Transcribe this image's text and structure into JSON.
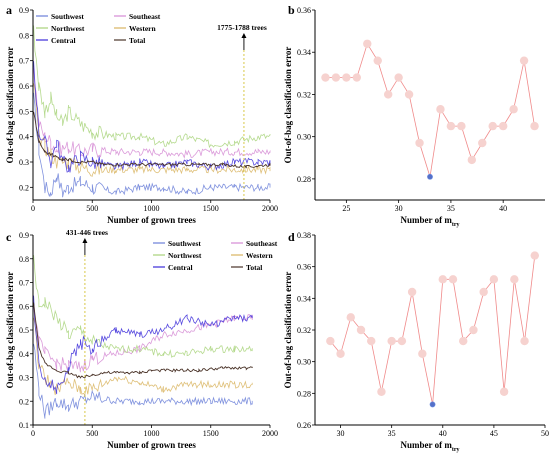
{
  "chart_data": [
    {
      "panel": "a",
      "type": "line",
      "xlabel": "Number of grown trees",
      "ylabel": "Out-of-bag classification error",
      "xlim": [
        0,
        2000
      ],
      "ylim": [
        0.15,
        0.9
      ],
      "xticks": [
        0,
        500,
        1000,
        1500,
        2000
      ],
      "yticks": [
        0.2,
        0.3,
        0.4,
        0.5,
        0.6,
        0.7,
        0.8,
        0.9
      ],
      "annotation": {
        "text": "1775-1788 trees",
        "x": 1780
      },
      "legend": {
        "placement": "top-left",
        "entries": [
          "Southwest",
          "Southeast",
          "Northwest",
          "Western",
          "Central",
          "Total"
        ]
      },
      "series": [
        {
          "name": "Southwest",
          "color": "#6a7fd8",
          "x": [
            5,
            50,
            100,
            150,
            200,
            250,
            300,
            400,
            500,
            700,
            900,
            1100,
            1300,
            1500,
            1700,
            1900,
            2000
          ],
          "values": [
            0.55,
            0.35,
            0.2,
            0.18,
            0.25,
            0.18,
            0.2,
            0.22,
            0.2,
            0.18,
            0.2,
            0.2,
            0.18,
            0.2,
            0.2,
            0.2,
            0.2
          ]
        },
        {
          "name": "Southeast",
          "color": "#d58ad4",
          "x": [
            5,
            50,
            100,
            150,
            200,
            300,
            400,
            500,
            700,
            900,
            1100,
            1300,
            1500,
            1700,
            1900,
            2000
          ],
          "values": [
            0.68,
            0.45,
            0.4,
            0.38,
            0.35,
            0.36,
            0.34,
            0.35,
            0.34,
            0.34,
            0.34,
            0.33,
            0.34,
            0.34,
            0.34,
            0.34
          ]
        },
        {
          "name": "Northwest",
          "color": "#a8d37a",
          "x": [
            5,
            50,
            100,
            150,
            200,
            250,
            300,
            400,
            500,
            700,
            900,
            1100,
            1300,
            1500,
            1700,
            1900,
            2000
          ],
          "values": [
            0.82,
            0.6,
            0.5,
            0.55,
            0.48,
            0.45,
            0.5,
            0.45,
            0.42,
            0.4,
            0.4,
            0.37,
            0.4,
            0.37,
            0.38,
            0.4,
            0.4
          ]
        },
        {
          "name": "Western",
          "color": "#d9b562",
          "x": [
            5,
            50,
            100,
            150,
            200,
            300,
            400,
            500,
            700,
            900,
            1100,
            1300,
            1500,
            1700,
            1900,
            2000
          ],
          "values": [
            0.62,
            0.4,
            0.36,
            0.33,
            0.3,
            0.3,
            0.28,
            0.27,
            0.27,
            0.27,
            0.27,
            0.27,
            0.27,
            0.27,
            0.27,
            0.27
          ]
        },
        {
          "name": "Central",
          "color": "#3b2bd9",
          "x": [
            5,
            50,
            100,
            150,
            200,
            250,
            300,
            400,
            500,
            700,
            900,
            1100,
            1300,
            1500,
            1700,
            1900,
            2000
          ],
          "values": [
            0.7,
            0.42,
            0.38,
            0.3,
            0.38,
            0.3,
            0.28,
            0.32,
            0.3,
            0.28,
            0.3,
            0.28,
            0.3,
            0.28,
            0.3,
            0.3,
            0.3
          ]
        },
        {
          "name": "Total",
          "color": "#4a3328",
          "x": [
            5,
            50,
            100,
            150,
            200,
            250,
            300,
            400,
            500,
            600,
            700,
            800,
            900,
            1000,
            1200,
            1400,
            1600,
            1800,
            2000
          ],
          "values": [
            0.5,
            0.38,
            0.34,
            0.33,
            0.32,
            0.31,
            0.31,
            0.3,
            0.3,
            0.29,
            0.29,
            0.29,
            0.29,
            0.29,
            0.29,
            0.29,
            0.29,
            0.28,
            0.29
          ]
        }
      ]
    },
    {
      "panel": "b",
      "type": "line",
      "xlabel": "Number of m",
      "xlabel_sub": "try",
      "ylabel": "Out-of-bag classification error",
      "xlim": [
        22,
        44
      ],
      "ylim": [
        0.27,
        0.36
      ],
      "xticks": [
        25,
        30,
        35,
        40
      ],
      "yticks": [
        0.28,
        0.3,
        0.32,
        0.34,
        0.36
      ],
      "x": [
        23,
        24,
        25,
        26,
        27,
        28,
        29,
        30,
        31,
        32,
        33,
        34,
        35,
        36,
        37,
        38,
        39,
        40,
        41,
        42,
        43
      ],
      "values": [
        0.328,
        0.328,
        0.328,
        0.328,
        0.344,
        0.336,
        0.32,
        0.328,
        0.32,
        0.297,
        0.281,
        0.313,
        0.305,
        0.305,
        0.289,
        0.297,
        0.305,
        0.305,
        0.313,
        0.336,
        0.305
      ],
      "highlight_index": 10,
      "line_color": "#f08a8a",
      "marker_color": "#f6d2cf",
      "highlight_color": "#5570c8"
    },
    {
      "panel": "c",
      "type": "line",
      "xlabel": "Number of grown trees",
      "ylabel": "Out-of-bag classification error",
      "xlim": [
        0,
        2000
      ],
      "ylim": [
        0.1,
        0.9
      ],
      "xticks": [
        0,
        500,
        1000,
        1500,
        2000
      ],
      "yticks": [
        0.1,
        0.2,
        0.3,
        0.4,
        0.5,
        0.6,
        0.7,
        0.8,
        0.9
      ],
      "annotation": {
        "text": "431-446 trees",
        "x": 438
      },
      "legend": {
        "placement": "top-right",
        "entries": [
          "Southwest",
          "Southeast",
          "Northwest",
          "Western",
          "Central",
          "Total"
        ]
      },
      "series": [
        {
          "name": "Southwest",
          "color": "#6a7fd8",
          "x": [
            5,
            50,
            100,
            200,
            300,
            400,
            500,
            700,
            900,
            1100,
            1300,
            1500,
            1700,
            1850
          ],
          "values": [
            0.45,
            0.25,
            0.15,
            0.2,
            0.18,
            0.2,
            0.22,
            0.2,
            0.2,
            0.2,
            0.2,
            0.2,
            0.2,
            0.2
          ]
        },
        {
          "name": "Southeast",
          "color": "#d58ad4",
          "x": [
            5,
            50,
            100,
            200,
            300,
            400,
            500,
            700,
            900,
            1100,
            1300,
            1500,
            1700,
            1850
          ],
          "values": [
            0.6,
            0.45,
            0.4,
            0.36,
            0.35,
            0.34,
            0.38,
            0.4,
            0.42,
            0.48,
            0.5,
            0.52,
            0.55,
            0.55
          ]
        },
        {
          "name": "Northwest",
          "color": "#a8d37a",
          "x": [
            5,
            50,
            100,
            200,
            300,
            400,
            500,
            700,
            900,
            1100,
            1300,
            1500,
            1700,
            1850
          ],
          "values": [
            0.8,
            0.6,
            0.62,
            0.55,
            0.48,
            0.5,
            0.45,
            0.42,
            0.42,
            0.4,
            0.4,
            0.42,
            0.42,
            0.42
          ]
        },
        {
          "name": "Western",
          "color": "#d9b562",
          "x": [
            5,
            50,
            100,
            200,
            300,
            400,
            500,
            700,
            900,
            1100,
            1300,
            1500,
            1700,
            1850
          ],
          "values": [
            0.55,
            0.35,
            0.3,
            0.25,
            0.28,
            0.25,
            0.25,
            0.3,
            0.28,
            0.25,
            0.27,
            0.27,
            0.27,
            0.27
          ]
        },
        {
          "name": "Central",
          "color": "#3b2bd9",
          "x": [
            5,
            50,
            100,
            200,
            300,
            400,
            500,
            700,
            900,
            1100,
            1300,
            1500,
            1700,
            1850
          ],
          "values": [
            0.62,
            0.35,
            0.3,
            0.25,
            0.35,
            0.45,
            0.42,
            0.5,
            0.48,
            0.5,
            0.55,
            0.52,
            0.55,
            0.55
          ]
        },
        {
          "name": "Total",
          "color": "#4a3328",
          "x": [
            5,
            50,
            100,
            200,
            300,
            400,
            500,
            600,
            700,
            800,
            900,
            1000,
            1200,
            1400,
            1600,
            1800,
            1850
          ],
          "values": [
            0.62,
            0.42,
            0.36,
            0.33,
            0.32,
            0.3,
            0.31,
            0.32,
            0.32,
            0.32,
            0.32,
            0.33,
            0.33,
            0.33,
            0.34,
            0.34,
            0.34
          ]
        }
      ]
    },
    {
      "panel": "d",
      "type": "line",
      "xlabel": "Number of m",
      "xlabel_sub": "try",
      "ylabel": "Out-of-bag classification error",
      "xlim": [
        27.5,
        50
      ],
      "ylim": [
        0.26,
        0.38
      ],
      "xticks": [
        30,
        35,
        40,
        45,
        50
      ],
      "yticks": [
        0.26,
        0.28,
        0.3,
        0.32,
        0.34,
        0.36,
        0.38
      ],
      "x": [
        29,
        30,
        31,
        32,
        33,
        34,
        35,
        36,
        37,
        38,
        39,
        40,
        41,
        42,
        43,
        44,
        45,
        46,
        47,
        48,
        49
      ],
      "values": [
        0.313,
        0.305,
        0.328,
        0.32,
        0.313,
        0.281,
        0.313,
        0.313,
        0.344,
        0.305,
        0.273,
        0.352,
        0.352,
        0.313,
        0.32,
        0.344,
        0.352,
        0.281,
        0.352,
        0.313,
        0.367
      ],
      "highlight_index": 10,
      "line_color": "#f08a8a",
      "marker_color": "#f6d2cf",
      "highlight_color": "#5570c8"
    }
  ]
}
